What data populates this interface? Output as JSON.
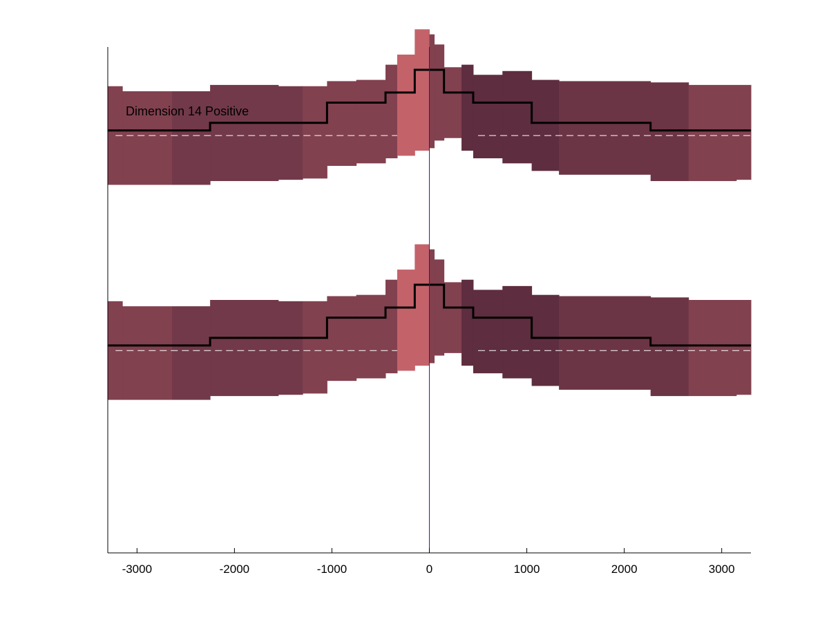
{
  "chart_data": {
    "type": "area",
    "title": "",
    "annotation": "Dimension 14 Positive",
    "xlabel": "",
    "ylabel": "",
    "xlim": [
      -3300,
      3300
    ],
    "ylim": [
      0,
      2.0
    ],
    "x_ticks": [
      -3000,
      -2000,
      -1000,
      0,
      1000,
      2000,
      3000
    ],
    "x_tick_labels": [
      "-3000",
      "-2000",
      "-1000",
      "0",
      "1000",
      "2000",
      "3000"
    ],
    "y_ticks_visible": false,
    "grid": false,
    "center_line_x": 0,
    "bins": [
      {
        "x0": -3300,
        "x1": -3150,
        "band": [
          0.605,
          0.995
        ],
        "color": "#82414f"
      },
      {
        "x0": -3150,
        "x1": -2640,
        "band": [
          0.605,
          0.975
        ],
        "color": "#82414f"
      },
      {
        "x0": -2640,
        "x1": -2250,
        "band": [
          0.605,
          0.975
        ],
        "color": "#72394a"
      },
      {
        "x0": -2250,
        "x1": -1550,
        "band": [
          0.62,
          1.0
        ],
        "color": "#72394a"
      },
      {
        "x0": -1550,
        "x1": -1300,
        "band": [
          0.625,
          0.995
        ],
        "color": "#72394a"
      },
      {
        "x0": -1300,
        "x1": -1050,
        "band": [
          0.63,
          0.995
        ],
        "color": "#82414f"
      },
      {
        "x0": -1050,
        "x1": -750,
        "band": [
          0.68,
          1.015
        ],
        "color": "#82414f"
      },
      {
        "x0": -750,
        "x1": -450,
        "band": [
          0.69,
          1.02
        ],
        "color": "#82414f"
      },
      {
        "x0": -450,
        "x1": -330,
        "band": [
          0.71,
          1.08
        ],
        "color": "#82414f"
      },
      {
        "x0": -330,
        "x1": -150,
        "band": [
          0.72,
          1.12
        ],
        "color": "#c4626a"
      },
      {
        "x0": -150,
        "x1": 0,
        "band": [
          0.74,
          1.22
        ],
        "color": "#c4626a"
      },
      {
        "x0": 0,
        "x1": 50,
        "band": [
          0.75,
          1.2
        ],
        "color": "#82414f"
      },
      {
        "x0": 50,
        "x1": 150,
        "band": [
          0.78,
          1.16
        ],
        "color": "#82414f"
      },
      {
        "x0": 150,
        "x1": 330,
        "band": [
          0.79,
          1.07
        ],
        "color": "#82414f"
      },
      {
        "x0": 330,
        "x1": 450,
        "band": [
          0.74,
          1.08
        ],
        "color": "#5e2d3f"
      },
      {
        "x0": 450,
        "x1": 750,
        "band": [
          0.71,
          1.04
        ],
        "color": "#5e2d3f"
      },
      {
        "x0": 750,
        "x1": 1050,
        "band": [
          0.69,
          1.055
        ],
        "color": "#5e2d3f"
      },
      {
        "x0": 1050,
        "x1": 1330,
        "band": [
          0.66,
          1.02
        ],
        "color": "#5e2d3f"
      },
      {
        "x0": 1330,
        "x1": 2270,
        "band": [
          0.645,
          1.015
        ],
        "color": "#6c3546"
      },
      {
        "x0": 2270,
        "x1": 2660,
        "band": [
          0.62,
          1.01
        ],
        "color": "#6c3546"
      },
      {
        "x0": 2660,
        "x1": 3150,
        "band": [
          0.62,
          1.0
        ],
        "color": "#82414f"
      },
      {
        "x0": 3150,
        "x1": 3300,
        "band": [
          0.625,
          1.0
        ],
        "color": "#82414f"
      }
    ],
    "mean_steps": [
      {
        "x0": -3300,
        "x1": -2250,
        "y": 0.82
      },
      {
        "x0": -2250,
        "x1": -1050,
        "y": 0.85
      },
      {
        "x0": -1050,
        "x1": -450,
        "y": 0.93
      },
      {
        "x0": -450,
        "x1": -150,
        "y": 0.97
      },
      {
        "x0": -150,
        "x1": 150,
        "y": 1.06
      },
      {
        "x0": 150,
        "x1": 450,
        "y": 0.97
      },
      {
        "x0": 450,
        "x1": 1050,
        "y": 0.93
      },
      {
        "x0": 1050,
        "x1": 2270,
        "y": 0.85
      },
      {
        "x0": 2270,
        "x1": 3300,
        "y": 0.82
      }
    ],
    "baseline": {
      "y": 0.8,
      "gap": [
        -330,
        450
      ]
    },
    "panels": [
      {
        "offset": 0.85
      },
      {
        "offset": 0.0
      }
    ]
  },
  "colors": {
    "axis": "#000000",
    "center_line": "#1f1f9f",
    "mean_line": "#000000",
    "baseline": "#ffffff"
  }
}
